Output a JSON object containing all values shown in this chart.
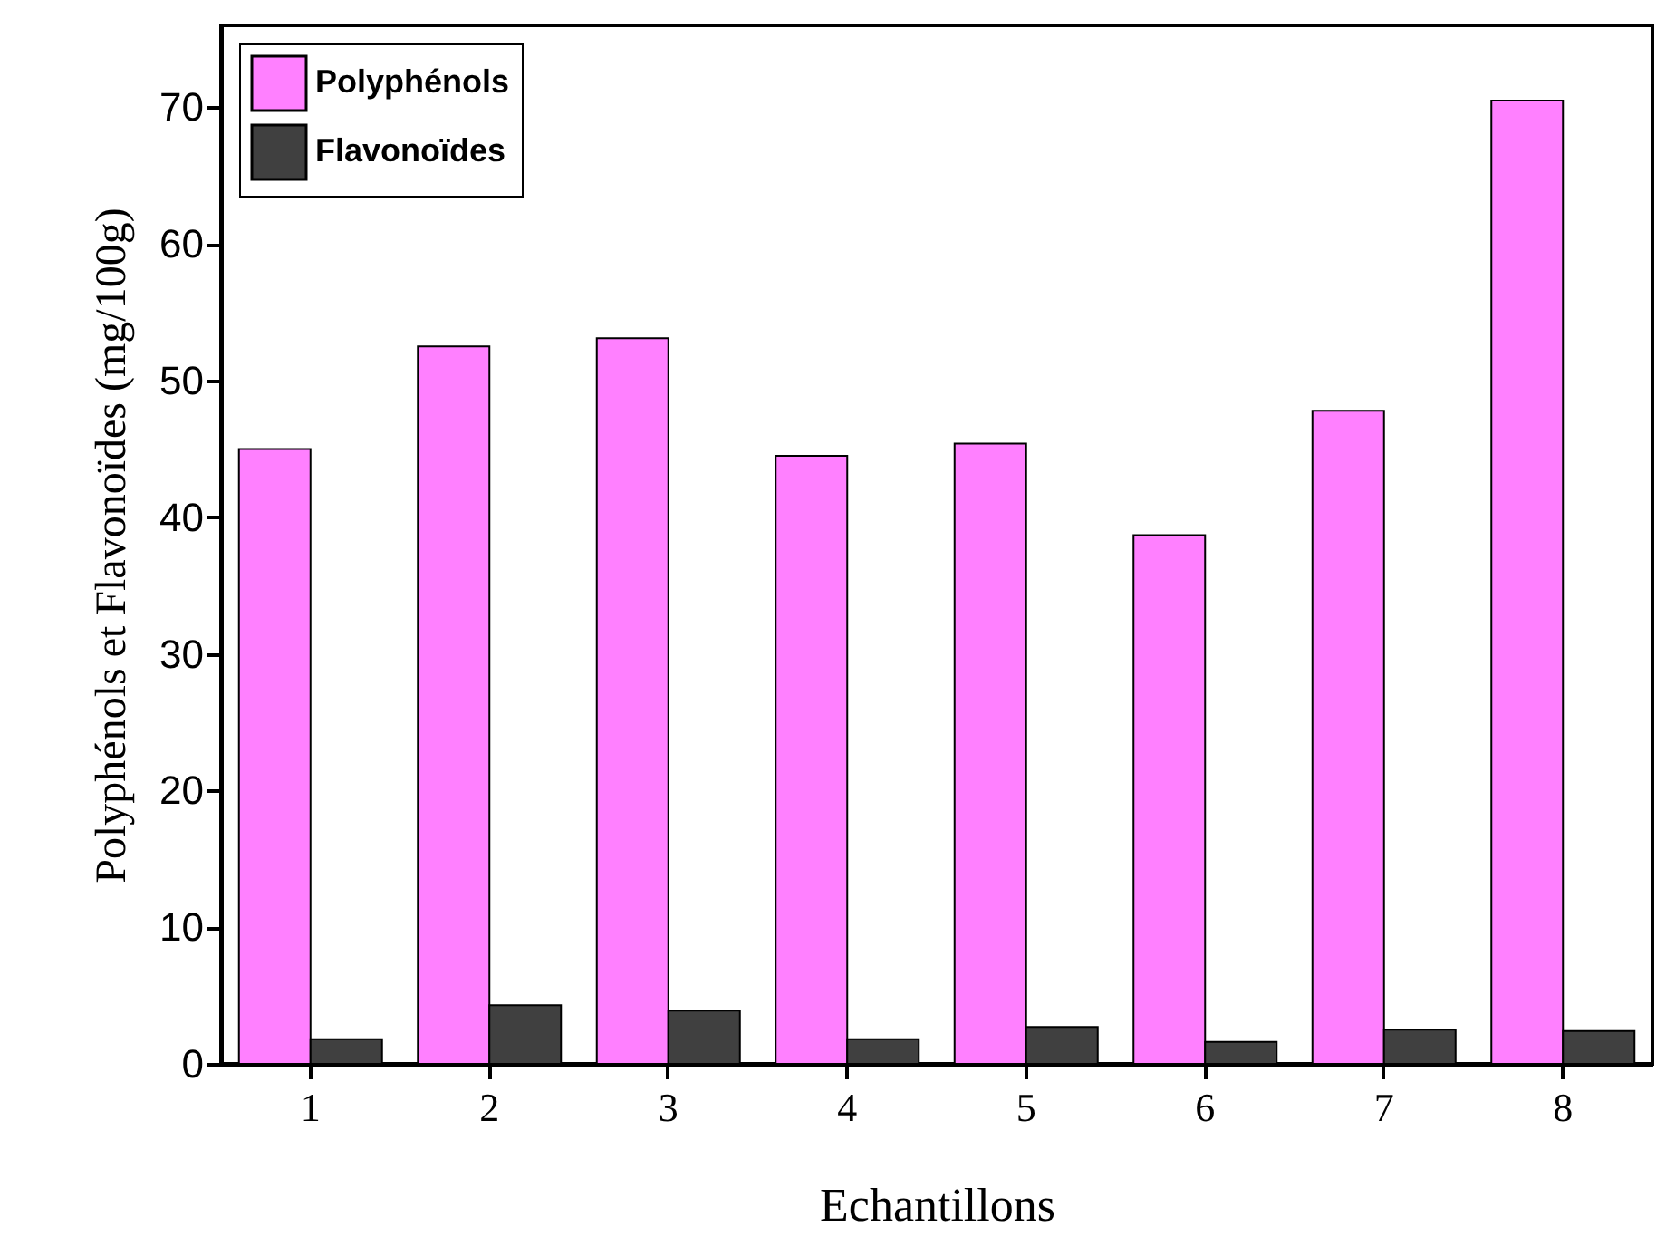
{
  "chart_data": {
    "type": "bar",
    "xlabel": "Echantillons",
    "ylabel": "Polyphénols et Flavonoïdes  (mg/100g)",
    "categories": [
      "1",
      "2",
      "3",
      "4",
      "5",
      "6",
      "7",
      "8"
    ],
    "series": [
      {
        "name": "Polyphénols",
        "color": "#ff80ff",
        "values": [
          45.0,
          52.5,
          53.1,
          44.5,
          45.4,
          38.7,
          47.8,
          70.5
        ]
      },
      {
        "name": "Flavonoïdes",
        "color": "#404040",
        "values": [
          1.8,
          4.3,
          3.9,
          1.8,
          2.7,
          1.6,
          2.5,
          2.4
        ]
      }
    ],
    "ylim": [
      0,
      76
    ],
    "yticks": [
      0,
      10,
      20,
      30,
      40,
      50,
      60,
      70
    ],
    "grid": false,
    "legend": "top left"
  }
}
